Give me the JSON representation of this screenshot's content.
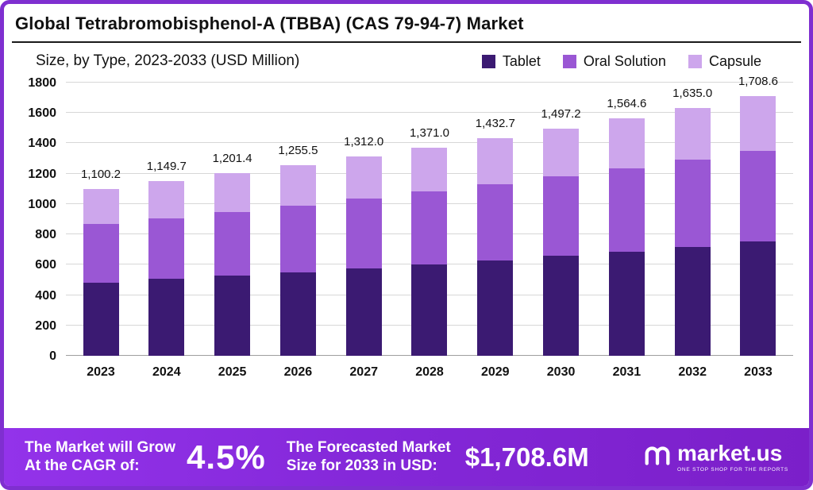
{
  "header": {
    "title": "Global Tetrabromobisphenol-A (TBBA) (CAS 79-94-7) Market",
    "subtitle": "Size, by Type, 2023-2033 (USD Million)"
  },
  "legend": [
    {
      "label": "Tablet",
      "color": "#3b1a72"
    },
    {
      "label": "Oral Solution",
      "color": "#9a57d4"
    },
    {
      "label": "Capsule",
      "color": "#cda6ec"
    }
  ],
  "chart_data": {
    "type": "bar",
    "stacked": true,
    "title": "Global Tetrabromobisphenol-A (TBBA) (CAS 79-94-7) Market Size, by Type, 2023-2033 (USD Million)",
    "categories": [
      "2023",
      "2024",
      "2025",
      "2026",
      "2027",
      "2028",
      "2029",
      "2030",
      "2031",
      "2032",
      "2033"
    ],
    "series": [
      {
        "name": "Tablet",
        "color": "#3b1a72",
        "values": [
          484,
          506,
          529,
          552,
          577,
          603,
          630,
          659,
          688,
          719,
          752
        ]
      },
      {
        "name": "Oral Solution",
        "color": "#9a57d4",
        "values": [
          385,
          402,
          420,
          439,
          459,
          480,
          501,
          524,
          548,
          572,
          598
        ]
      },
      {
        "name": "Capsule",
        "color": "#cda6ec",
        "values": [
          231.2,
          241.7,
          252.4,
          264.5,
          276.0,
          288.0,
          301.7,
          314.2,
          328.6,
          344.0,
          358.6
        ]
      }
    ],
    "totals": [
      1100.2,
      1149.7,
      1201.4,
      1255.5,
      1312.0,
      1371.0,
      1432.7,
      1497.2,
      1564.6,
      1635.0,
      1708.6
    ],
    "total_labels": [
      "1,100.2",
      "1,149.7",
      "1,201.4",
      "1,255.5",
      "1,312.0",
      "1,371.0",
      "1,432.7",
      "1,497.2",
      "1,564.6",
      "1,635.0",
      "1,708.6"
    ],
    "xlabel": "",
    "ylabel": "",
    "ylim": [
      0,
      1800
    ],
    "yticks": [
      0,
      200,
      400,
      600,
      800,
      1000,
      1200,
      1400,
      1600,
      1800
    ],
    "grid": true,
    "legend_position": "top-right"
  },
  "banner": {
    "cagr_label_line1": "The Market will Grow",
    "cagr_label_line2": "At the CAGR of:",
    "cagr_value": "4.5%",
    "forecast_label_line1": "The Forecasted Market",
    "forecast_label_line2": "Size for 2033 in USD:",
    "forecast_value": "$1,708.6M",
    "brand": "market.us",
    "brand_tagline": "One Stop Shop For The Reports"
  }
}
